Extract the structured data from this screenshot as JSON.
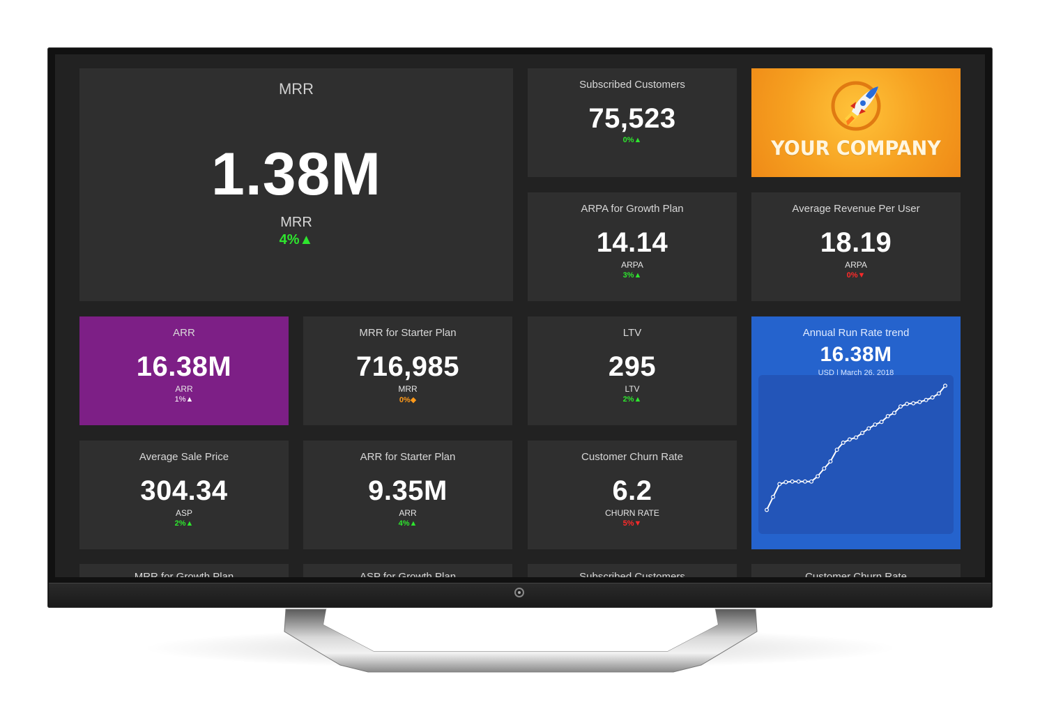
{
  "tiles": {
    "mrr_main": {
      "title": "MRR",
      "value": "1.38M",
      "label": "MRR",
      "change": "4%",
      "trend": "up"
    },
    "subscribed": {
      "title": "Subscribed Customers",
      "value": "75,523",
      "change": "0%",
      "trend": "up"
    },
    "arpa_growth": {
      "title": "ARPA for Growth Plan",
      "value": "14.14",
      "label": "ARPA",
      "change": "3%",
      "trend": "up"
    },
    "arpu": {
      "title": "Average Revenue Per User",
      "value": "18.19",
      "label": "ARPA",
      "change": "0%",
      "trend": "down"
    },
    "arr": {
      "title": "ARR",
      "value": "16.38M",
      "label": "ARR",
      "change": "1%",
      "trend": "up"
    },
    "mrr_starter": {
      "title": "MRR for Starter Plan",
      "value": "716,985",
      "label": "MRR",
      "change": "0%",
      "trend": "flat"
    },
    "ltv": {
      "title": "LTV",
      "value": "295",
      "label": "LTV",
      "change": "2%",
      "trend": "up"
    },
    "asp": {
      "title": "Average Sale Price",
      "value": "304.34",
      "label": "ASP",
      "change": "2%",
      "trend": "up"
    },
    "arr_starter": {
      "title": "ARR for Starter Plan",
      "value": "9.35M",
      "label": "ARR",
      "change": "4%",
      "trend": "up"
    },
    "churn": {
      "title": "Customer Churn Rate",
      "value": "6.2",
      "label": "CHURN RATE",
      "change": "5%",
      "trend": "down"
    },
    "arr_trend": {
      "title": "Annual Run Rate trend",
      "value": "16.38M",
      "sub": "USD  | March 26, 2018"
    },
    "bottom": [
      {
        "title": "MRR for Growth Plan"
      },
      {
        "title": "ASP for Growth Plan"
      },
      {
        "title": "Subscribed Customers"
      },
      {
        "title": "Customer Churn Rate"
      }
    ]
  },
  "brand": {
    "name": "YOUR COMPANY"
  },
  "icons": {
    "up": "triangle-up-icon",
    "down": "triangle-down-icon",
    "flat": "diamond-icon",
    "logo": "rocket-icon"
  },
  "colors": {
    "up": "#2ee62e",
    "down": "#ff2a2a",
    "flat": "#ff9a1a",
    "arr_tile": "#7d1f86",
    "trend_tile": "#2563cd",
    "brand_tile": "#f6a020"
  },
  "chart_data": {
    "type": "line",
    "title": "Annual Run Rate trend",
    "xlabel": "",
    "ylabel": "",
    "grid": false,
    "legend": "none",
    "x": [
      1,
      2,
      3,
      4,
      5,
      6,
      7,
      8,
      9,
      10,
      11,
      12,
      13,
      14,
      15,
      16,
      17,
      18,
      19,
      20,
      21,
      22,
      23,
      24,
      25,
      26,
      27,
      28,
      29
    ],
    "values": [
      2,
      4,
      6,
      6.3,
      6.4,
      6.4,
      6.4,
      6.4,
      7.2,
      8.4,
      9.5,
      11.3,
      12.4,
      12.9,
      13.2,
      13.9,
      14.6,
      15.2,
      15.6,
      16.5,
      17.0,
      18.0,
      18.4,
      18.5,
      18.7,
      19.0,
      19.4,
      20.0,
      21.2
    ],
    "ylim": [
      0,
      22
    ]
  }
}
